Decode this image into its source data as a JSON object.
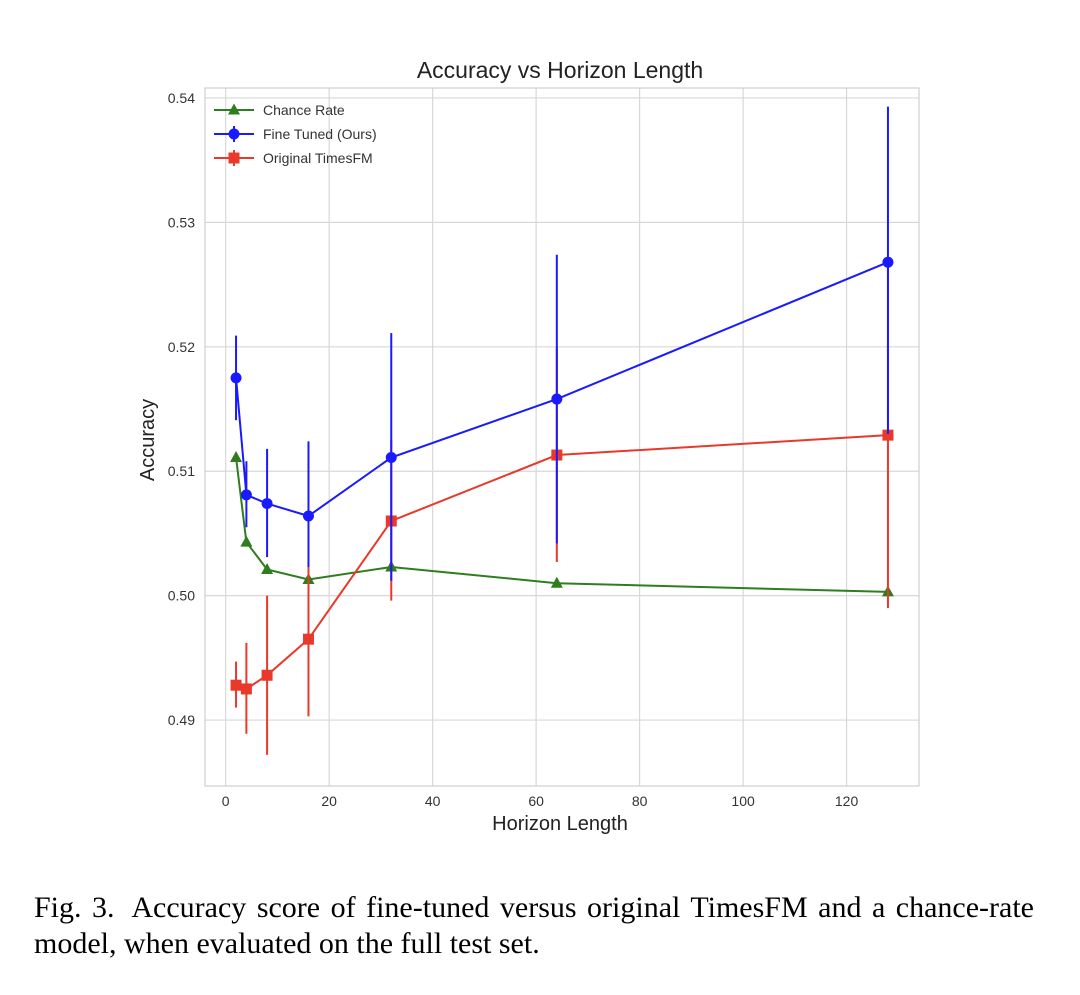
{
  "chart_data": {
    "type": "line",
    "title": "Accuracy vs Horizon Length",
    "xlabel": "Horizon Length",
    "ylabel": "Accuracy",
    "xlim": [
      -4,
      134
    ],
    "ylim": [
      0.4847,
      0.5408
    ],
    "xticks": [
      0,
      20,
      40,
      60,
      80,
      100,
      120
    ],
    "yticks": [
      0.49,
      0.5,
      0.51,
      0.52,
      0.53,
      0.54
    ],
    "ytick_labels": [
      "0.49",
      "0.50",
      "0.51",
      "0.52",
      "0.53",
      "0.54"
    ],
    "grid": true,
    "legend_position": "upper-left",
    "x": [
      2,
      4,
      8,
      16,
      32,
      64,
      128
    ],
    "series": [
      {
        "name": "Chance Rate",
        "color": "#2e7d1f",
        "marker": "triangle",
        "values": [
          0.5111,
          0.5043,
          0.5021,
          0.5013,
          0.5023,
          0.501,
          0.5003
        ]
      },
      {
        "name": "Fine Tuned (Ours)",
        "color": "#1a1aff",
        "marker": "circle",
        "values": [
          0.5175,
          0.5081,
          0.5074,
          0.5064,
          0.5111,
          0.5158,
          0.5268
        ],
        "error_low": [
          0.5141,
          0.5055,
          0.5031,
          0.5023,
          0.5012,
          0.5042,
          0.513
        ],
        "error_high": [
          0.5209,
          0.5108,
          0.5118,
          0.5124,
          0.5211,
          0.5274,
          0.5393
        ]
      },
      {
        "name": "Original TimesFM",
        "color": "#e8392a",
        "marker": "square",
        "values": [
          0.4928,
          0.4925,
          0.4936,
          0.4965,
          0.506,
          0.5113,
          0.5129
        ],
        "error_low": [
          0.491,
          0.4889,
          0.4872,
          0.4903,
          0.4996,
          0.5027,
          0.499
        ],
        "error_high": [
          0.4947,
          0.4962,
          0.5,
          0.5025,
          0.5125,
          0.52,
          0.5265
        ]
      }
    ]
  },
  "caption": {
    "label": "Fig. 3.",
    "text": "Accuracy score of fine-tuned versus original TimesFM and a chance-rate model, when evaluated on the full test set."
  }
}
